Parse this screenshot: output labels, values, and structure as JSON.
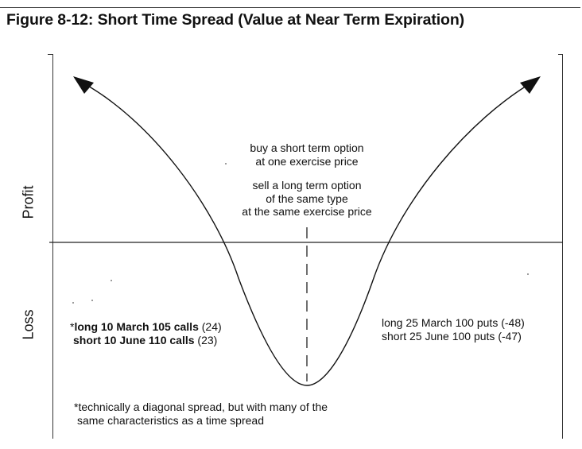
{
  "figure": {
    "title": "Figure 8-12: Short Time Spread (Value at Near Term Expiration)"
  },
  "axes": {
    "profit_label": "Profit",
    "loss_label": "Loss"
  },
  "strategy_notes": {
    "buy_line1": "buy a short term option",
    "buy_line2": "at one exercise price",
    "sell_line1": "sell a long term option",
    "sell_line2": "of the same type",
    "sell_line3": "at the same exercise price"
  },
  "left_example": {
    "line1_prefix": "*",
    "line1_bold": "long 10 March 105 calls",
    "line1_value": "(24)",
    "line2_bold": "short 10 June 110 calls",
    "line2_value": "(23)"
  },
  "right_example": {
    "line1": "long 25 March 100 puts (-48)",
    "line2": "short 25 June 100 puts (-47)"
  },
  "footnote": {
    "line1": "*technically a diagonal spread, but with many of the",
    "line2": "same characteristics as a time spread"
  },
  "colors": {
    "ink": "#111111",
    "background": "#ffffff"
  }
}
